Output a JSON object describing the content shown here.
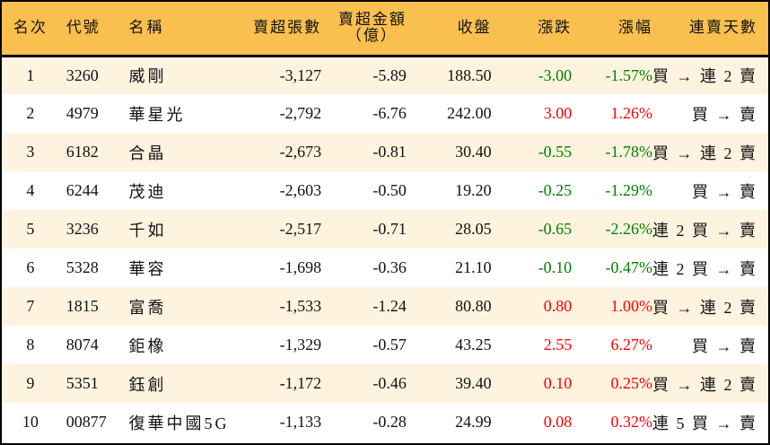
{
  "colors": {
    "header_bg": "#f9bf4f",
    "row_odd": "#fef3df",
    "row_even": "#ffffff",
    "up": "#ff0000",
    "down": "#008000"
  },
  "headers": {
    "rank": "名次",
    "code": "代號",
    "name": "名稱",
    "sell_volume": "賣超張數",
    "sell_amount_line1": "賣超金額",
    "sell_amount_line2": "（億）",
    "close": "收盤",
    "change": "漲跌",
    "change_pct": "漲幅",
    "sell_days": "連賣天數"
  },
  "rows": [
    {
      "rank": "1",
      "code": "3260",
      "name": "威剛",
      "sell_volume": "-3,127",
      "sell_amount": "-5.89",
      "close": "188.50",
      "change": "-3.00",
      "change_pct": "-1.57%",
      "dir": "down",
      "sell_days": "買 → 連 2 賣"
    },
    {
      "rank": "2",
      "code": "4979",
      "name": "華星光",
      "sell_volume": "-2,792",
      "sell_amount": "-6.76",
      "close": "242.00",
      "change": "3.00",
      "change_pct": "1.26%",
      "dir": "up",
      "sell_days": "買 → 賣"
    },
    {
      "rank": "3",
      "code": "6182",
      "name": "合晶",
      "sell_volume": "-2,673",
      "sell_amount": "-0.81",
      "close": "30.40",
      "change": "-0.55",
      "change_pct": "-1.78%",
      "dir": "down",
      "sell_days": "買 → 連 2 賣"
    },
    {
      "rank": "4",
      "code": "6244",
      "name": "茂迪",
      "sell_volume": "-2,603",
      "sell_amount": "-0.50",
      "close": "19.20",
      "change": "-0.25",
      "change_pct": "-1.29%",
      "dir": "down",
      "sell_days": "買 → 賣"
    },
    {
      "rank": "5",
      "code": "3236",
      "name": "千如",
      "sell_volume": "-2,517",
      "sell_amount": "-0.71",
      "close": "28.05",
      "change": "-0.65",
      "change_pct": "-2.26%",
      "dir": "down",
      "sell_days": "連 2 買 → 賣"
    },
    {
      "rank": "6",
      "code": "5328",
      "name": "華容",
      "sell_volume": "-1,698",
      "sell_amount": "-0.36",
      "close": "21.10",
      "change": "-0.10",
      "change_pct": "-0.47%",
      "dir": "down",
      "sell_days": "連 2 買 → 賣"
    },
    {
      "rank": "7",
      "code": "1815",
      "name": "富喬",
      "sell_volume": "-1,533",
      "sell_amount": "-1.24",
      "close": "80.80",
      "change": "0.80",
      "change_pct": "1.00%",
      "dir": "up",
      "sell_days": "買 → 連 2 賣"
    },
    {
      "rank": "8",
      "code": "8074",
      "name": "鉅橡",
      "sell_volume": "-1,329",
      "sell_amount": "-0.57",
      "close": "43.25",
      "change": "2.55",
      "change_pct": "6.27%",
      "dir": "up",
      "sell_days": "買 → 賣"
    },
    {
      "rank": "9",
      "code": "5351",
      "name": "鈺創",
      "sell_volume": "-1,172",
      "sell_amount": "-0.46",
      "close": "39.40",
      "change": "0.10",
      "change_pct": "0.25%",
      "dir": "up",
      "sell_days": "買 → 連 2 賣"
    },
    {
      "rank": "10",
      "code": "00877",
      "name": "復華中國5G",
      "sell_volume": "-1,133",
      "sell_amount": "-0.28",
      "close": "24.99",
      "change": "0.08",
      "change_pct": "0.32%",
      "dir": "up",
      "sell_days": "連 5 買 → 賣"
    }
  ]
}
